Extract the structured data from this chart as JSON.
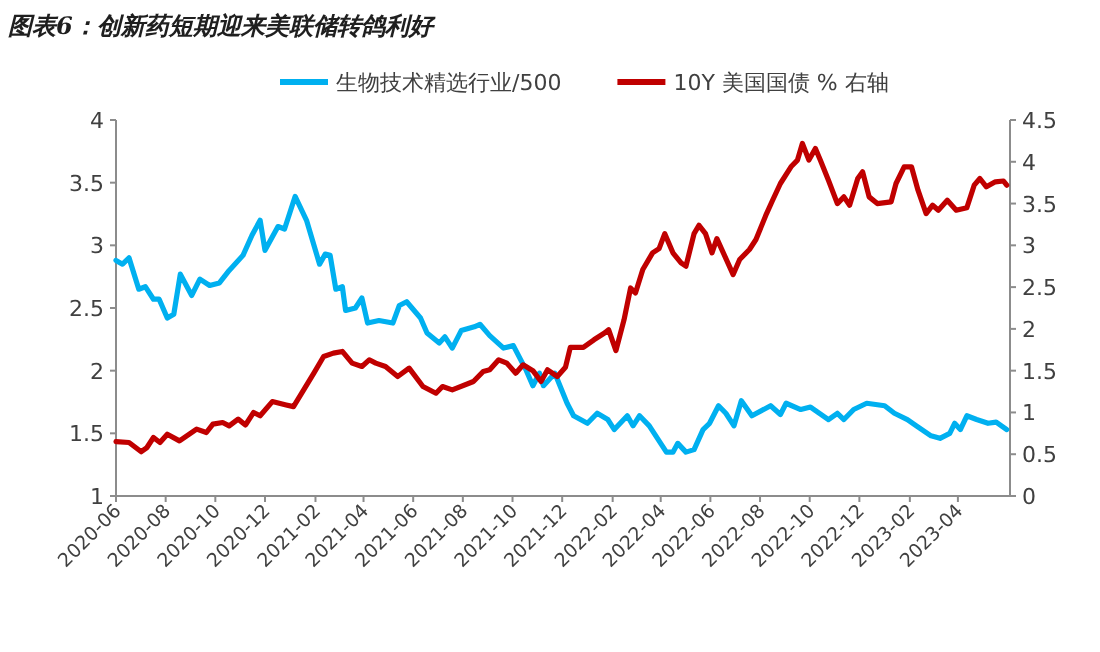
{
  "chart_data": {
    "type": "line",
    "title": "图表6：创新药短期迎来美联储转鸽利好",
    "legend": "top",
    "grid": false,
    "marker": "none",
    "line_style": "solid",
    "xlim": [
      "2020-06-01",
      "2023-06-04"
    ],
    "xticks": [
      "2020-06",
      "2020-08",
      "2020-10",
      "2020-12",
      "2021-02",
      "2021-04",
      "2021-06",
      "2021-08",
      "2021-10",
      "2021-12",
      "2022-02",
      "2022-04",
      "2022-06",
      "2022-08",
      "2022-10",
      "2022-12",
      "2023-02",
      "2023-04"
    ],
    "ylim": [
      1,
      4
    ],
    "yticks": [
      1,
      1.5,
      2,
      2.5,
      3,
      3.5,
      4
    ],
    "y2lim": [
      0,
      4.5
    ],
    "y2ticks": [
      0,
      0.5,
      1,
      1.5,
      2,
      2.5,
      3,
      3.5,
      4,
      4.5
    ],
    "series": [
      {
        "name": "生物技术精选行业/500",
        "color": "#00b0f0",
        "axis": "y",
        "x": [
          "2020-06-01",
          "2020-06-09",
          "2020-06-17",
          "2020-06-29",
          "2020-07-07",
          "2020-07-17",
          "2020-07-24",
          "2020-08-03",
          "2020-08-11",
          "2020-08-19",
          "2020-09-02",
          "2020-09-12",
          "2020-09-24",
          "2020-10-06",
          "2020-10-18",
          "2020-11-04",
          "2020-11-15",
          "2020-11-25",
          "2020-12-01",
          "2020-12-17",
          "2020-12-25",
          "2021-01-07",
          "2021-01-21",
          "2021-02-06",
          "2021-02-13",
          "2021-02-19",
          "2021-02-26",
          "2021-03-06",
          "2021-03-10",
          "2021-03-22",
          "2021-03-30",
          "2021-04-06",
          "2021-04-20",
          "2021-05-07",
          "2021-05-15",
          "2021-05-24",
          "2021-06-10",
          "2021-06-18",
          "2021-07-03",
          "2021-07-10",
          "2021-07-19",
          "2021-07-30",
          "2021-08-15",
          "2021-08-22",
          "2021-09-03",
          "2021-09-20",
          "2021-10-02",
          "2021-10-18",
          "2021-10-26",
          "2021-11-03",
          "2021-11-08",
          "2021-11-22",
          "2021-12-07",
          "2021-12-15",
          "2022-01-01",
          "2022-01-13",
          "2022-01-26",
          "2022-02-03",
          "2022-02-19",
          "2022-02-26",
          "2022-03-06",
          "2022-03-18",
          "2022-04-08",
          "2022-04-16",
          "2022-04-22",
          "2022-05-02",
          "2022-05-12",
          "2022-05-23",
          "2022-05-31",
          "2022-06-11",
          "2022-06-20",
          "2022-06-30",
          "2022-07-09",
          "2022-07-22",
          "2022-08-14",
          "2022-08-26",
          "2022-09-02",
          "2022-09-20",
          "2022-10-02",
          "2022-10-24",
          "2022-11-04",
          "2022-11-12",
          "2022-11-24",
          "2022-12-10",
          "2023-01-01",
          "2023-01-13",
          "2023-01-29",
          "2023-02-09",
          "2023-02-27",
          "2023-03-10",
          "2023-03-22",
          "2023-03-28",
          "2023-04-04",
          "2023-04-12",
          "2023-04-24",
          "2023-05-08",
          "2023-05-18",
          "2023-05-31"
        ],
        "values": [
          2.88,
          2.85,
          2.9,
          2.65,
          2.67,
          2.57,
          2.57,
          2.42,
          2.45,
          2.77,
          2.6,
          2.73,
          2.68,
          2.7,
          2.8,
          2.92,
          3.08,
          3.2,
          2.96,
          3.15,
          3.13,
          3.39,
          3.2,
          2.85,
          2.93,
          2.92,
          2.65,
          2.67,
          2.48,
          2.5,
          2.58,
          2.38,
          2.4,
          2.38,
          2.52,
          2.55,
          2.42,
          2.3,
          2.22,
          2.27,
          2.18,
          2.32,
          2.35,
          2.37,
          2.28,
          2.18,
          2.2,
          2.0,
          1.88,
          1.98,
          1.88,
          1.98,
          1.74,
          1.64,
          1.58,
          1.66,
          1.61,
          1.53,
          1.64,
          1.56,
          1.64,
          1.56,
          1.35,
          1.35,
          1.42,
          1.35,
          1.37,
          1.53,
          1.58,
          1.72,
          1.66,
          1.56,
          1.76,
          1.64,
          1.72,
          1.65,
          1.74,
          1.69,
          1.71,
          1.61,
          1.66,
          1.61,
          1.69,
          1.74,
          1.72,
          1.66,
          1.61,
          1.56,
          1.48,
          1.46,
          1.5,
          1.58,
          1.53,
          1.64,
          1.61,
          1.58,
          1.59,
          1.53
        ]
      },
      {
        "name": "10Y 美国国债 % 右轴",
        "color": "#c00000",
        "axis": "y2",
        "x": [
          "2020-06-01",
          "2020-06-17",
          "2020-07-02",
          "2020-07-09",
          "2020-07-17",
          "2020-07-25",
          "2020-08-03",
          "2020-08-18",
          "2020-09-08",
          "2020-09-20",
          "2020-09-28",
          "2020-10-10",
          "2020-10-18",
          "2020-10-29",
          "2020-11-07",
          "2020-11-17",
          "2020-11-25",
          "2020-12-10",
          "2020-12-27",
          "2021-01-05",
          "2021-01-30",
          "2021-02-11",
          "2021-02-23",
          "2021-03-06",
          "2021-03-18",
          "2021-03-30",
          "2021-04-08",
          "2021-04-16",
          "2021-04-28",
          "2021-05-13",
          "2021-05-27",
          "2021-06-13",
          "2021-06-29",
          "2021-07-07",
          "2021-07-19",
          "2021-08-14",
          "2021-08-26",
          "2021-09-03",
          "2021-09-14",
          "2021-09-24",
          "2021-10-05",
          "2021-10-14",
          "2021-10-26",
          "2021-11-05",
          "2021-11-13",
          "2021-11-25",
          "2021-12-05",
          "2021-12-11",
          "2021-12-27",
          "2022-01-09",
          "2022-01-22",
          "2022-01-27",
          "2022-02-05",
          "2022-02-15",
          "2022-02-23",
          "2022-03-01",
          "2022-03-10",
          "2022-03-22",
          "2022-03-30",
          "2022-04-06",
          "2022-04-16",
          "2022-04-26",
          "2022-05-02",
          "2022-05-12",
          "2022-05-18",
          "2022-05-26",
          "2022-06-03",
          "2022-06-09",
          "2022-06-29",
          "2022-07-07",
          "2022-07-19",
          "2022-07-27",
          "2022-08-09",
          "2022-08-16",
          "2022-08-26",
          "2022-09-08",
          "2022-09-16",
          "2022-09-22",
          "2022-09-30",
          "2022-10-08",
          "2022-10-14",
          "2022-10-24",
          "2022-11-04",
          "2022-11-12",
          "2022-11-19",
          "2022-11-29",
          "2022-12-05",
          "2022-12-13",
          "2022-12-23",
          "2023-01-09",
          "2023-01-15",
          "2023-01-25",
          "2023-02-03",
          "2023-02-11",
          "2023-02-21",
          "2023-03-01",
          "2023-03-08",
          "2023-03-19",
          "2023-03-30",
          "2023-04-12",
          "2023-04-21",
          "2023-04-28",
          "2023-05-06",
          "2023-05-17",
          "2023-05-27",
          "2023-05-31"
        ],
        "values": [
          0.65,
          0.64,
          0.53,
          0.58,
          0.7,
          0.64,
          0.74,
          0.66,
          0.8,
          0.76,
          0.86,
          0.88,
          0.84,
          0.92,
          0.85,
          1.0,
          0.96,
          1.13,
          1.09,
          1.07,
          1.47,
          1.67,
          1.71,
          1.73,
          1.59,
          1.55,
          1.63,
          1.59,
          1.55,
          1.43,
          1.53,
          1.31,
          1.23,
          1.31,
          1.27,
          1.37,
          1.49,
          1.51,
          1.63,
          1.59,
          1.47,
          1.57,
          1.5,
          1.37,
          1.51,
          1.43,
          1.54,
          1.78,
          1.78,
          1.87,
          1.95,
          1.99,
          1.74,
          2.11,
          2.49,
          2.43,
          2.71,
          2.91,
          2.96,
          3.14,
          2.91,
          2.79,
          2.75,
          3.14,
          3.24,
          3.14,
          2.91,
          3.08,
          2.65,
          2.83,
          2.95,
          3.07,
          3.38,
          3.53,
          3.74,
          3.94,
          4.02,
          4.22,
          4.02,
          4.16,
          4.02,
          3.78,
          3.5,
          3.58,
          3.48,
          3.8,
          3.88,
          3.58,
          3.5,
          3.52,
          3.74,
          3.94,
          3.94,
          3.66,
          3.38,
          3.48,
          3.42,
          3.54,
          3.42,
          3.45,
          3.72,
          3.8,
          3.7,
          3.76,
          3.77,
          3.72
        ]
      }
    ]
  }
}
